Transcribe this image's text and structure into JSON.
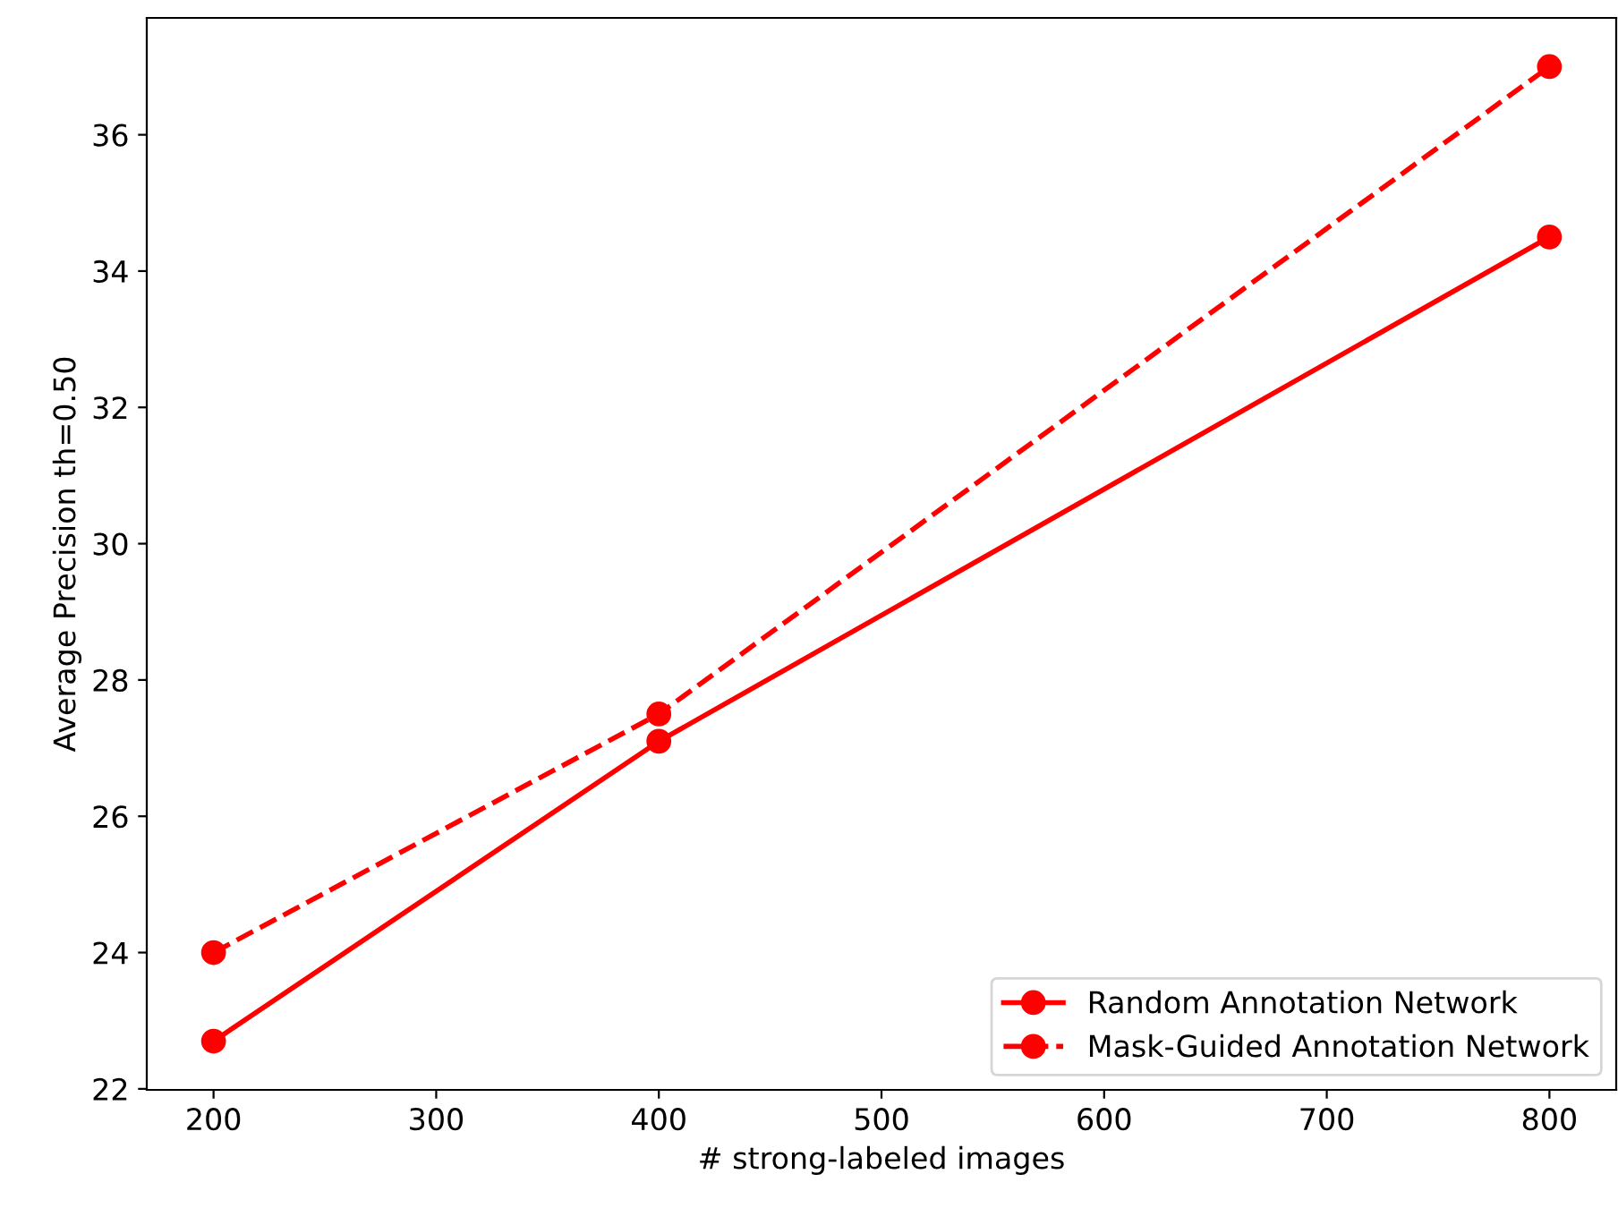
{
  "chart_data": {
    "type": "line",
    "xlabel": "# strong-labeled images",
    "ylabel": "Average Precision th=0.50",
    "x": [
      200,
      400,
      800
    ],
    "series": [
      {
        "name": "Random Annotation Network",
        "color": "#ff0000",
        "values": [
          22.7,
          27.1,
          34.5
        ],
        "line_style": "solid"
      },
      {
        "name": "Mask-Guided Annotation Network",
        "color": "#ff0000",
        "values": [
          24.0,
          27.5,
          37.0
        ],
        "line_style": "dashed"
      }
    ],
    "marker": "circle",
    "xlim": [
      170,
      830
    ],
    "ylim": [
      21.985,
      37.715
    ],
    "xticks": [
      200,
      300,
      400,
      500,
      600,
      700,
      800
    ],
    "yticks": [
      22,
      24,
      26,
      28,
      30,
      32,
      34,
      36
    ],
    "grid": false,
    "legend": "bottom right"
  }
}
